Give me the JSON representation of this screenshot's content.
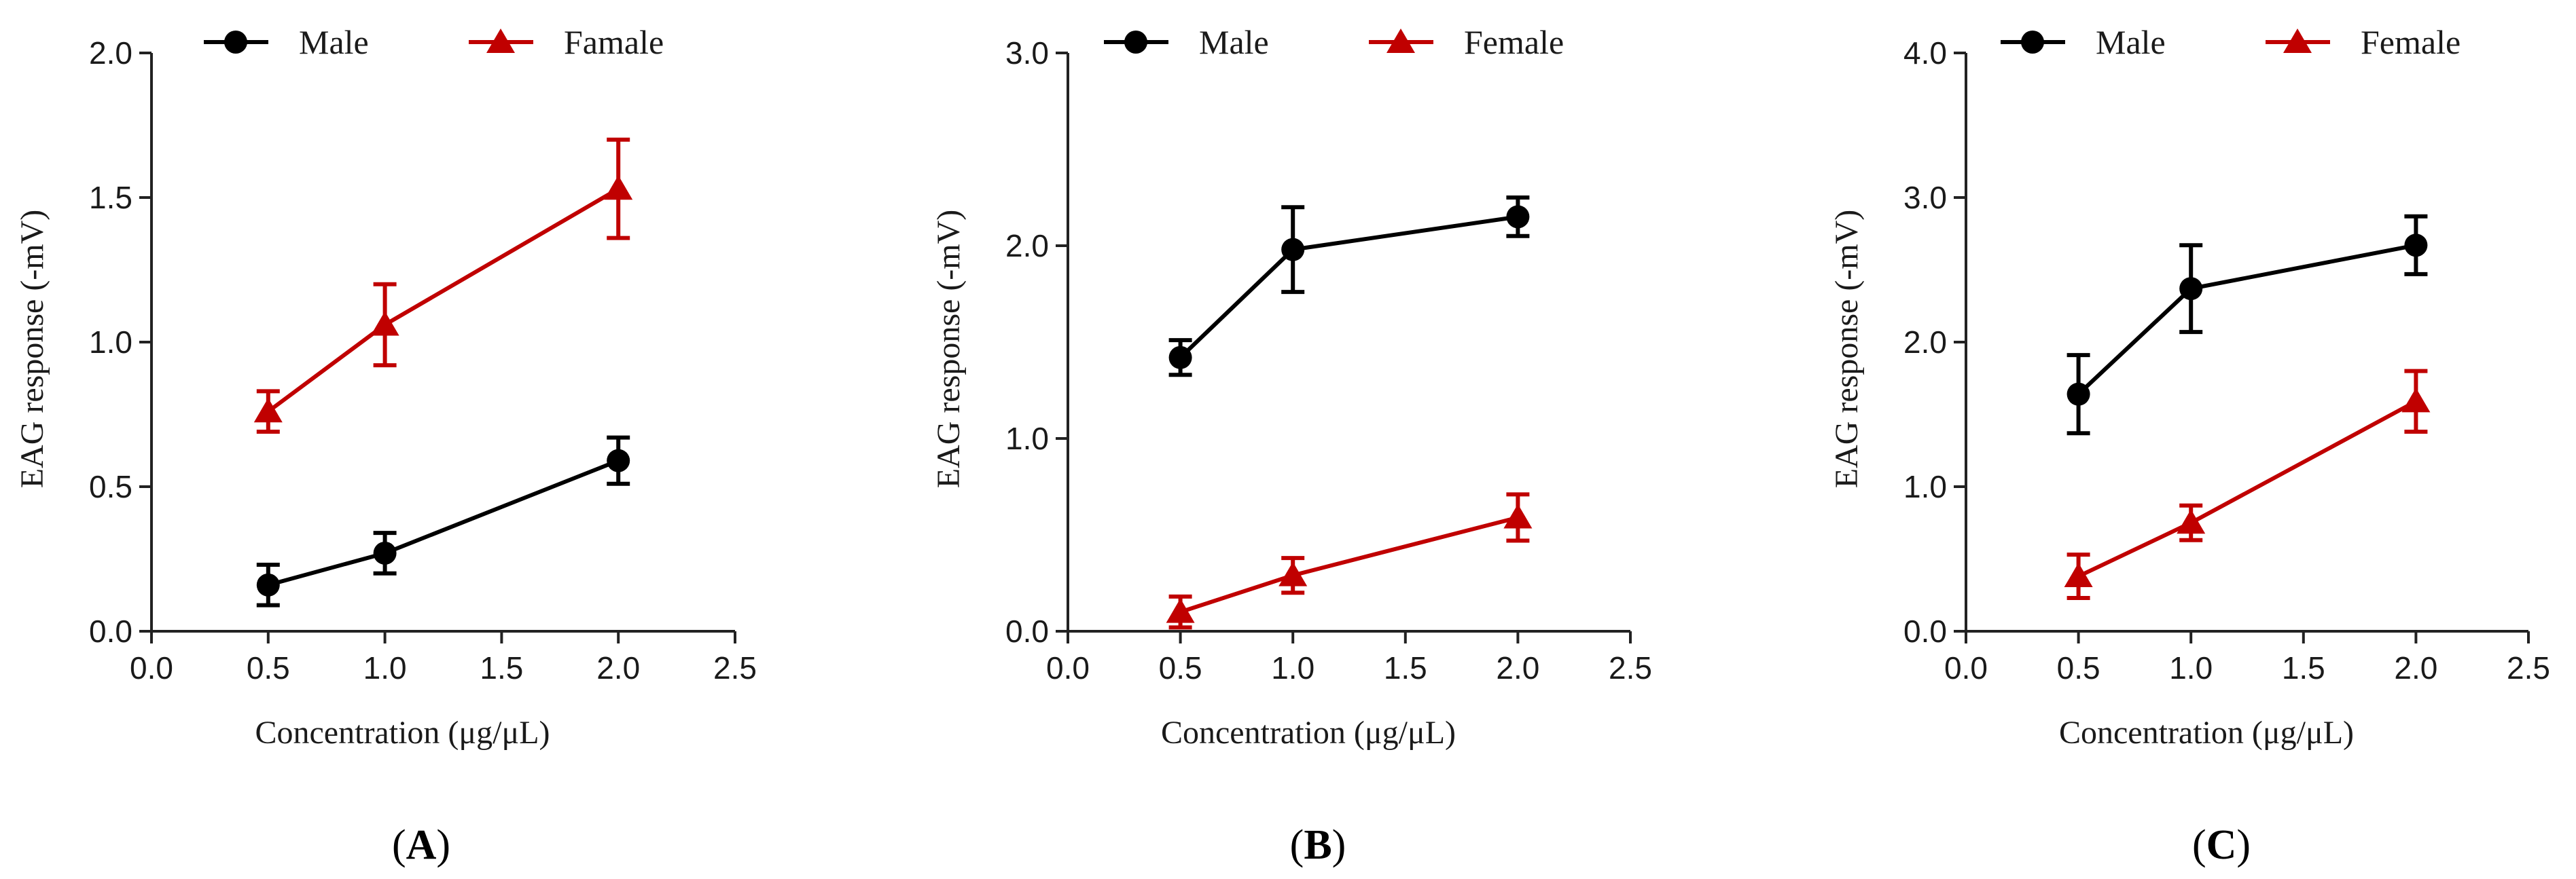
{
  "chart_data": [
    {
      "type": "line",
      "panel": "A",
      "panel_label_open": "(",
      "panel_label_close": ")",
      "xlabel": "Concentration (μg/μL)",
      "ylabel": "EAG response (-mV)",
      "xlim": [
        0.0,
        2.5
      ],
      "ylim": [
        0.0,
        2.0
      ],
      "x_ticks": [
        "0.0",
        "0.5",
        "1.0",
        "1.5",
        "2.0",
        "2.5"
      ],
      "y_ticks": [
        "0.0",
        "0.5",
        "1.0",
        "1.5",
        "2.0"
      ],
      "x": [
        0.5,
        1.0,
        2.0
      ],
      "legend_position": "top",
      "series": [
        {
          "name": "Male",
          "marker": "circle",
          "color": "#000000",
          "values": [
            0.16,
            0.27,
            0.59
          ],
          "errors": [
            0.07,
            0.07,
            0.08
          ]
        },
        {
          "name": "Famale",
          "marker": "triangle",
          "color": "#c00000",
          "values": [
            0.76,
            1.06,
            1.53
          ],
          "errors": [
            0.07,
            0.14,
            0.17
          ]
        }
      ]
    },
    {
      "type": "line",
      "panel": "B",
      "panel_label_open": "(",
      "panel_label_close": ")",
      "xlabel": "Concentration (μg/μL)",
      "ylabel": "EAG response (-mV)",
      "xlim": [
        0.0,
        2.5
      ],
      "ylim": [
        0.0,
        3.0
      ],
      "x_ticks": [
        "0.0",
        "0.5",
        "1.0",
        "1.5",
        "2.0",
        "2.5"
      ],
      "y_ticks": [
        "0.0",
        "1.0",
        "2.0",
        "3.0"
      ],
      "x": [
        0.5,
        1.0,
        2.0
      ],
      "legend_position": "top",
      "series": [
        {
          "name": "Male",
          "marker": "circle",
          "color": "#000000",
          "values": [
            1.42,
            1.98,
            2.15
          ],
          "errors": [
            0.09,
            0.22,
            0.1
          ]
        },
        {
          "name": "Female",
          "marker": "triangle",
          "color": "#c00000",
          "values": [
            0.1,
            0.29,
            0.59
          ],
          "errors": [
            0.08,
            0.09,
            0.12
          ]
        }
      ]
    },
    {
      "type": "line",
      "panel": "C",
      "panel_label_open": "(",
      "panel_label_close": ")",
      "xlabel": "Concentration (μg/μL)",
      "ylabel": "EAG response (-mV)",
      "xlim": [
        0.0,
        2.5
      ],
      "ylim": [
        0.0,
        4.0
      ],
      "x_ticks": [
        "0.0",
        "0.5",
        "1.0",
        "1.5",
        "2.0",
        "2.5"
      ],
      "y_ticks": [
        "0.0",
        "1.0",
        "2.0",
        "3.0",
        "4.0"
      ],
      "x": [
        0.5,
        1.0,
        2.0
      ],
      "legend_position": "top",
      "series": [
        {
          "name": "Male",
          "marker": "circle",
          "color": "#000000",
          "values": [
            1.64,
            2.37,
            2.67
          ],
          "errors": [
            0.27,
            0.3,
            0.2
          ]
        },
        {
          "name": "Female",
          "marker": "triangle",
          "color": "#c00000",
          "values": [
            0.38,
            0.75,
            1.59
          ],
          "errors": [
            0.15,
            0.12,
            0.21
          ]
        }
      ]
    }
  ]
}
